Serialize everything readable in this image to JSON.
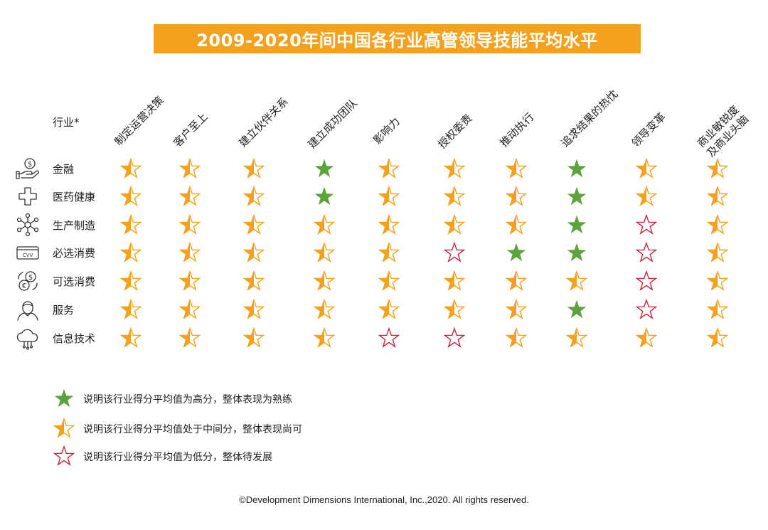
{
  "title": "2009-2020年间中国各行业高管领导技能平均水平",
  "industry_header": "行业*",
  "colors": {
    "title_bg": "#f4a21d",
    "high": "#5ba33b",
    "medium": "#f4a21d",
    "low": "#c8283e"
  },
  "chart_data": {
    "type": "table",
    "title": "2009-2020年间中国各行业高管领导技能平均水平",
    "row_header": "行业*",
    "columns": [
      "制定运营决策",
      "客户至上",
      "建立伙伴关系",
      "建立成功团队",
      "影响力",
      "授权委责",
      "推动执行",
      "追求结果的热忱",
      "领导变革",
      "商业敏锐度\n及商业头脑"
    ],
    "rows": [
      {
        "label": "金融",
        "icon": "money-hand-icon",
        "values": [
          "medium",
          "medium",
          "medium",
          "high",
          "medium",
          "medium",
          "medium",
          "high",
          "medium",
          "medium"
        ]
      },
      {
        "label": "医药健康",
        "icon": "medical-cross-icon",
        "values": [
          "medium",
          "medium",
          "medium",
          "high",
          "medium",
          "medium",
          "medium",
          "high",
          "medium",
          "medium"
        ]
      },
      {
        "label": "生产制造",
        "icon": "network-nodes-icon",
        "values": [
          "medium",
          "medium",
          "medium",
          "medium",
          "medium",
          "medium",
          "medium",
          "high",
          "low",
          "medium"
        ]
      },
      {
        "label": "必选消费",
        "icon": "credit-card-cvv-icon",
        "values": [
          "medium",
          "medium",
          "medium",
          "medium",
          "medium",
          "low",
          "high",
          "high",
          "low",
          "medium"
        ]
      },
      {
        "label": "可选消费",
        "icon": "currency-exchange-icon",
        "values": [
          "medium",
          "medium",
          "medium",
          "medium",
          "medium",
          "medium",
          "medium",
          "medium",
          "low",
          "medium"
        ]
      },
      {
        "label": "服务",
        "icon": "service-person-icon",
        "values": [
          "medium",
          "medium",
          "medium",
          "medium",
          "medium",
          "medium",
          "medium",
          "high",
          "low",
          "medium"
        ]
      },
      {
        "label": "信息技术",
        "icon": "cloud-computing-icon",
        "values": [
          "medium",
          "medium",
          "medium",
          "medium",
          "low",
          "low",
          "medium",
          "medium",
          "medium",
          "medium"
        ]
      }
    ],
    "legend": [
      {
        "level": "high",
        "text": "说明该行业得分平均值为高分，整体表现为熟练"
      },
      {
        "level": "medium",
        "text": "说明该行业得分平均值处于中间分，整体表现尚可"
      },
      {
        "level": "low",
        "text": "说明该行业得分平均值为低分，整体待发展"
      }
    ]
  },
  "copyright": "©Development Dimensions International, Inc.,2020. All rights reserved."
}
